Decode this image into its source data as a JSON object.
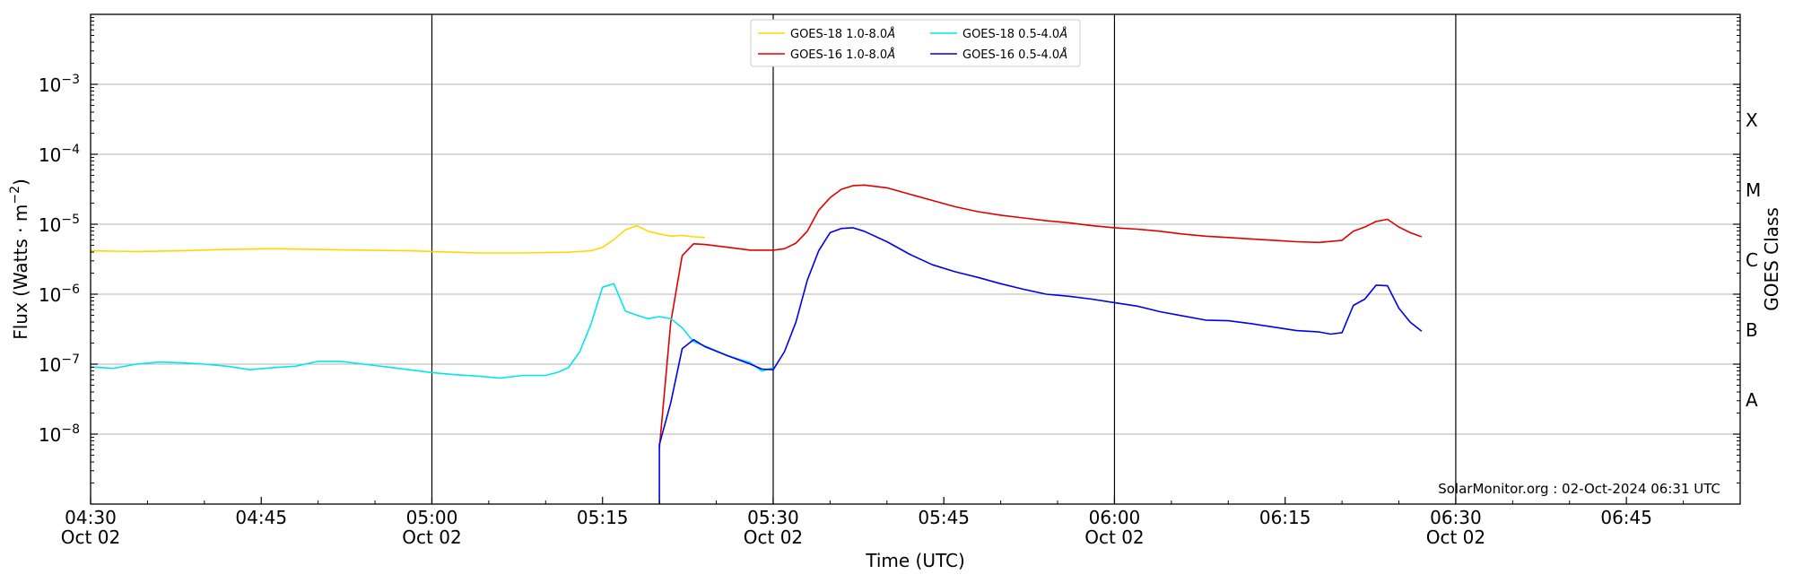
{
  "chart_data": {
    "type": "line",
    "xlabel": "Time (UTC)",
    "ylabel": "Flux (Watts · m",
    "ylabel_sup": "−2",
    "ylabel_close": ")",
    "right_label": "GOES Class",
    "y_scale": "log",
    "ylim": [
      1e-09,
      0.01
    ],
    "xlim_minutes_from_0430": [
      0,
      105
    ],
    "x_ticks": [
      {
        "t": 0,
        "time": "04:30",
        "date": "Oct 02"
      },
      {
        "t": 15,
        "time": "04:45",
        "date": ""
      },
      {
        "t": 30,
        "time": "05:00",
        "date": "Oct 02"
      },
      {
        "t": 45,
        "time": "05:15",
        "date": ""
      },
      {
        "t": 60,
        "time": "05:30",
        "date": "Oct 02"
      },
      {
        "t": 75,
        "time": "05:45",
        "date": ""
      },
      {
        "t": 90,
        "time": "06:00",
        "date": "Oct 02"
      },
      {
        "t": 105,
        "time": "06:15",
        "date": ""
      },
      {
        "t": 120,
        "time": "06:30",
        "date": "Oct 02"
      },
      {
        "t": 135,
        "time": "06:45",
        "date": ""
      }
    ],
    "y_ticks": [
      {
        "exp": -8,
        "label": "10",
        "sup": "−8"
      },
      {
        "exp": -7,
        "label": "10",
        "sup": "−7"
      },
      {
        "exp": -6,
        "label": "10",
        "sup": "−6"
      },
      {
        "exp": -5,
        "label": "10",
        "sup": "−5"
      },
      {
        "exp": -4,
        "label": "10",
        "sup": "−4"
      },
      {
        "exp": -3,
        "label": "10",
        "sup": "−3"
      }
    ],
    "class_labels": [
      {
        "exp": -7.5,
        "label": "A"
      },
      {
        "exp": -6.5,
        "label": "B"
      },
      {
        "exp": -5.5,
        "label": "C"
      },
      {
        "exp": -4.5,
        "label": "M"
      },
      {
        "exp": -3.5,
        "label": "X"
      }
    ],
    "grid": true,
    "legend_placement": "top-center",
    "credit": "SolarMonitor.org : 02-Oct-2024 06:31 UTC",
    "series": [
      {
        "name": "GOES-18 1.0-8.0",
        "name_suffix": "Å",
        "color": "#ffd700",
        "points": [
          [
            0,
            -5.38
          ],
          [
            4,
            -5.39
          ],
          [
            8,
            -5.38
          ],
          [
            12,
            -5.36
          ],
          [
            16,
            -5.35
          ],
          [
            20,
            -5.36
          ],
          [
            24,
            -5.37
          ],
          [
            28,
            -5.38
          ],
          [
            30,
            -5.39
          ],
          [
            34,
            -5.41
          ],
          [
            38,
            -5.41
          ],
          [
            42,
            -5.4
          ],
          [
            44,
            -5.38
          ],
          [
            45,
            -5.33
          ],
          [
            46,
            -5.22
          ],
          [
            47,
            -5.08
          ],
          [
            48,
            -5.02
          ],
          [
            49,
            -5.1
          ],
          [
            50,
            -5.14
          ],
          [
            51,
            -5.17
          ],
          [
            52,
            -5.16
          ],
          [
            53,
            -5.18
          ],
          [
            54,
            -5.19
          ]
        ]
      },
      {
        "name": "GOES-16 1.0-8.0",
        "name_suffix": "Å",
        "color": "#e00000",
        "points": [
          [
            50,
            -8.2
          ],
          [
            51,
            -6.4
          ],
          [
            52,
            -5.45
          ],
          [
            53,
            -5.28
          ],
          [
            54,
            -5.29
          ],
          [
            56,
            -5.33
          ],
          [
            58,
            -5.37
          ],
          [
            60,
            -5.37
          ],
          [
            61,
            -5.35
          ],
          [
            62,
            -5.27
          ],
          [
            63,
            -5.1
          ],
          [
            64,
            -4.8
          ],
          [
            65,
            -4.62
          ],
          [
            66,
            -4.5
          ],
          [
            67,
            -4.45
          ],
          [
            68,
            -4.44
          ],
          [
            70,
            -4.48
          ],
          [
            72,
            -4.57
          ],
          [
            74,
            -4.66
          ],
          [
            76,
            -4.75
          ],
          [
            78,
            -4.82
          ],
          [
            80,
            -4.87
          ],
          [
            82,
            -4.91
          ],
          [
            84,
            -4.95
          ],
          [
            86,
            -4.98
          ],
          [
            88,
            -5.02
          ],
          [
            90,
            -5.05
          ],
          [
            92,
            -5.07
          ],
          [
            94,
            -5.1
          ],
          [
            96,
            -5.14
          ],
          [
            98,
            -5.17
          ],
          [
            100,
            -5.19
          ],
          [
            102,
            -5.21
          ],
          [
            104,
            -5.23
          ],
          [
            106,
            -5.25
          ],
          [
            108,
            -5.26
          ],
          [
            110,
            -5.23
          ],
          [
            111,
            -5.1
          ],
          [
            112,
            -5.04
          ],
          [
            113,
            -4.96
          ],
          [
            114,
            -4.93
          ],
          [
            115,
            -5.04
          ],
          [
            116,
            -5.12
          ],
          [
            117,
            -5.18
          ]
        ]
      },
      {
        "name": "GOES-18 0.5-4.0",
        "name_suffix": "Å",
        "color": "#00e5ee",
        "points": [
          [
            0,
            -7.04
          ],
          [
            2,
            -7.06
          ],
          [
            4,
            -7.0
          ],
          [
            6,
            -6.97
          ],
          [
            8,
            -6.98
          ],
          [
            10,
            -7.0
          ],
          [
            12,
            -7.03
          ],
          [
            14,
            -7.08
          ],
          [
            16,
            -7.05
          ],
          [
            18,
            -7.03
          ],
          [
            20,
            -6.96
          ],
          [
            22,
            -6.96
          ],
          [
            24,
            -7.0
          ],
          [
            26,
            -7.04
          ],
          [
            28,
            -7.08
          ],
          [
            30,
            -7.12
          ],
          [
            32,
            -7.15
          ],
          [
            34,
            -7.17
          ],
          [
            36,
            -7.2
          ],
          [
            38,
            -7.16
          ],
          [
            40,
            -7.16
          ],
          [
            41,
            -7.12
          ],
          [
            42,
            -7.05
          ],
          [
            43,
            -6.82
          ],
          [
            44,
            -6.42
          ],
          [
            45,
            -5.9
          ],
          [
            46,
            -5.85
          ],
          [
            47,
            -6.24
          ],
          [
            48,
            -6.3
          ],
          [
            49,
            -6.35
          ],
          [
            50,
            -6.32
          ],
          [
            51,
            -6.35
          ],
          [
            52,
            -6.48
          ],
          [
            53,
            -6.68
          ],
          [
            54,
            -6.74
          ],
          [
            56,
            -6.88
          ],
          [
            58,
            -6.98
          ],
          [
            59,
            -7.1
          ],
          [
            60,
            -7.05
          ]
        ]
      },
      {
        "name": "GOES-16 0.5-4.0",
        "name_suffix": "Å",
        "color": "#0000ee",
        "points": [
          [
            50,
            -9
          ],
          [
            50,
            -8.15
          ],
          [
            51,
            -7.55
          ],
          [
            52,
            -6.78
          ],
          [
            53,
            -6.65
          ],
          [
            54,
            -6.75
          ],
          [
            56,
            -6.88
          ],
          [
            58,
            -7.0
          ],
          [
            59,
            -7.07
          ],
          [
            60,
            -7.08
          ],
          [
            61,
            -6.82
          ],
          [
            62,
            -6.4
          ],
          [
            63,
            -5.8
          ],
          [
            64,
            -5.38
          ],
          [
            65,
            -5.12
          ],
          [
            66,
            -5.06
          ],
          [
            67,
            -5.05
          ],
          [
            68,
            -5.1
          ],
          [
            70,
            -5.25
          ],
          [
            72,
            -5.43
          ],
          [
            74,
            -5.58
          ],
          [
            76,
            -5.68
          ],
          [
            78,
            -5.76
          ],
          [
            80,
            -5.85
          ],
          [
            82,
            -5.93
          ],
          [
            84,
            -6.0
          ],
          [
            86,
            -6.03
          ],
          [
            88,
            -6.07
          ],
          [
            90,
            -6.12
          ],
          [
            92,
            -6.17
          ],
          [
            94,
            -6.25
          ],
          [
            96,
            -6.31
          ],
          [
            98,
            -6.37
          ],
          [
            100,
            -6.38
          ],
          [
            102,
            -6.42
          ],
          [
            104,
            -6.47
          ],
          [
            106,
            -6.52
          ],
          [
            108,
            -6.54
          ],
          [
            109,
            -6.57
          ],
          [
            110,
            -6.55
          ],
          [
            111,
            -6.16
          ],
          [
            112,
            -6.07
          ],
          [
            113,
            -5.87
          ],
          [
            114,
            -5.88
          ],
          [
            115,
            -6.2
          ],
          [
            116,
            -6.4
          ],
          [
            117,
            -6.53
          ]
        ]
      }
    ]
  }
}
